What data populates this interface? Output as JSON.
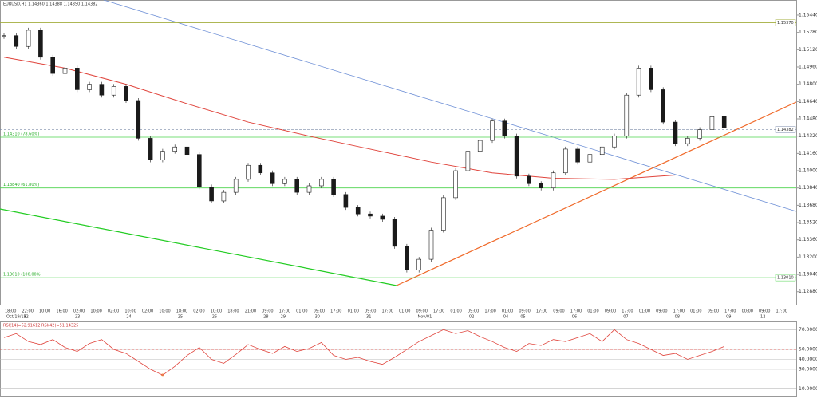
{
  "header": "EURUSD,H1  1.14360 1.14388 1.14350 1.14382",
  "chart_data": [
    {
      "type": "candlestick",
      "ylim": [
        1.1276,
        1.1558
      ],
      "yticks": [
        {
          "value": 1.1288,
          "label": "1.12880"
        },
        {
          "value": 1.1304,
          "label": "1.13040"
        },
        {
          "value": 1.132,
          "label": "1.13200"
        },
        {
          "value": 1.1336,
          "label": "1.13360"
        },
        {
          "value": 1.1352,
          "label": "1.13520"
        },
        {
          "value": 1.1368,
          "label": "1.13680"
        },
        {
          "value": 1.1384,
          "label": "1.13840"
        },
        {
          "value": 1.14,
          "label": "1.14000"
        },
        {
          "value": 1.1416,
          "label": "1.14160"
        },
        {
          "value": 1.1432,
          "label": "1.14320"
        },
        {
          "value": 1.1448,
          "label": "1.14480"
        },
        {
          "value": 1.1464,
          "label": "1.14640"
        },
        {
          "value": 1.148,
          "label": "1.14800"
        },
        {
          "value": 1.1496,
          "label": "1.14960"
        },
        {
          "value": 1.1512,
          "label": "1.15120"
        },
        {
          "value": 1.1528,
          "label": "1.15280"
        },
        {
          "value": 1.1544,
          "label": "1.15440"
        }
      ],
      "up_color": "#1a1a1a",
      "down_color": "#1a1a1a",
      "close": [
        1.1525,
        1.1515,
        1.153,
        1.1505,
        1.149,
        1.1495,
        1.1475,
        1.148,
        1.147,
        1.1478,
        1.1465,
        1.143,
        1.141,
        1.1418,
        1.1422,
        1.1415,
        1.1385,
        1.1372,
        1.138,
        1.1392,
        1.1405,
        1.1398,
        1.1388,
        1.1392,
        1.138,
        1.1386,
        1.1392,
        1.1378,
        1.1366,
        1.136,
        1.1358,
        1.1355,
        1.133,
        1.1308,
        1.1318,
        1.1345,
        1.1375,
        1.14,
        1.1418,
        1.1428,
        1.1446,
        1.1432,
        1.1395,
        1.1388,
        1.1384,
        1.1398,
        1.142,
        1.1408,
        1.1415,
        1.1422,
        1.1432,
        1.147,
        1.1495,
        1.1475,
        1.1445,
        1.1425,
        1.143,
        1.1438,
        1.145,
        1.144
      ],
      "ma": {
        "name": "SMA(200)",
        "color": "#e0443c",
        "step": 5,
        "values": [
          1.1505,
          1.1495,
          1.148,
          1.1462,
          1.1445,
          1.1432,
          1.142,
          1.1408,
          1.1398,
          1.1393,
          1.1392,
          1.1396
        ]
      },
      "levels": [
        {
          "value": 1.1537,
          "color": "#a2ad3c",
          "tag": "1.15370"
        },
        {
          "value": 1.1431,
          "color": "#4cd44c",
          "label": "1.14310 (78.60%)"
        },
        {
          "value": 1.1384,
          "color": "#4cd44c",
          "label": "1.13840 (61.80%)"
        },
        {
          "value": 1.1301,
          "color": "#4cd44c",
          "label": "1.13010 (100.00%)",
          "tag": "1.13010"
        }
      ],
      "current": {
        "value": 1.14382,
        "tag": "1.14382"
      },
      "time_labels": [
        "18:00",
        "22:00",
        "10:00",
        "16:00",
        "02:00",
        "10:00",
        "02:00",
        "10:00",
        "02:00",
        "10:00",
        "18:00",
        "02:00",
        "10:00",
        "18:00",
        "21:00",
        "09:00",
        "17:00",
        "01:00",
        "09:00",
        "17:00",
        "01:00",
        "09:00",
        "17:00",
        "01:00",
        "09:00",
        "17:00",
        "01:00",
        "09:00",
        "17:00",
        "01:00",
        "09:00",
        "17:00",
        "09:00",
        "17:00",
        "01:00",
        "09:00",
        "17:00",
        "01:00",
        "09:00",
        "17:00",
        "01:00",
        "09:00",
        "17:00",
        "00:00",
        "09:00",
        "17:00"
      ],
      "date_labels": [
        "Oct/19/18",
        "22",
        null,
        null,
        "23",
        null,
        null,
        "24",
        null,
        null,
        "25",
        null,
        "26",
        null,
        null,
        "28",
        "29",
        null,
        "30",
        null,
        null,
        "31",
        null,
        null,
        "Nov/01",
        null,
        null,
        "02",
        null,
        "04",
        "05",
        null,
        null,
        "06",
        null,
        null,
        "07",
        null,
        null,
        "08",
        null,
        null,
        "09",
        null,
        "12",
        null
      ]
    },
    {
      "type": "line",
      "title": "RSI(14)=52.91612  RSI(42)=51.14325",
      "color": "#e0443c",
      "oversold_color": "#f4a460",
      "ylim": [
        2.5,
        77.5
      ],
      "yticks": [
        {
          "value": 70,
          "label": "70.00000"
        },
        {
          "value": 50,
          "label": "50.00000"
        },
        {
          "value": 40,
          "label": "40.00000"
        },
        {
          "value": 30,
          "label": "30.00000"
        },
        {
          "value": 10,
          "label": "10.00000"
        }
      ],
      "midline": 50,
      "values": [
        62,
        66,
        58,
        55,
        60,
        52,
        48,
        56,
        60,
        50,
        46,
        38,
        30,
        24,
        33,
        44,
        52,
        40,
        36,
        45,
        55,
        50,
        46,
        53,
        48,
        51,
        57,
        44,
        40,
        42,
        38,
        35,
        42,
        50,
        58,
        64,
        70,
        66,
        69,
        63,
        58,
        52,
        48,
        56,
        54,
        60,
        58,
        62,
        66,
        58,
        70,
        60,
        56,
        50,
        44,
        46,
        40,
        44,
        48,
        53
      ]
    }
  ]
}
